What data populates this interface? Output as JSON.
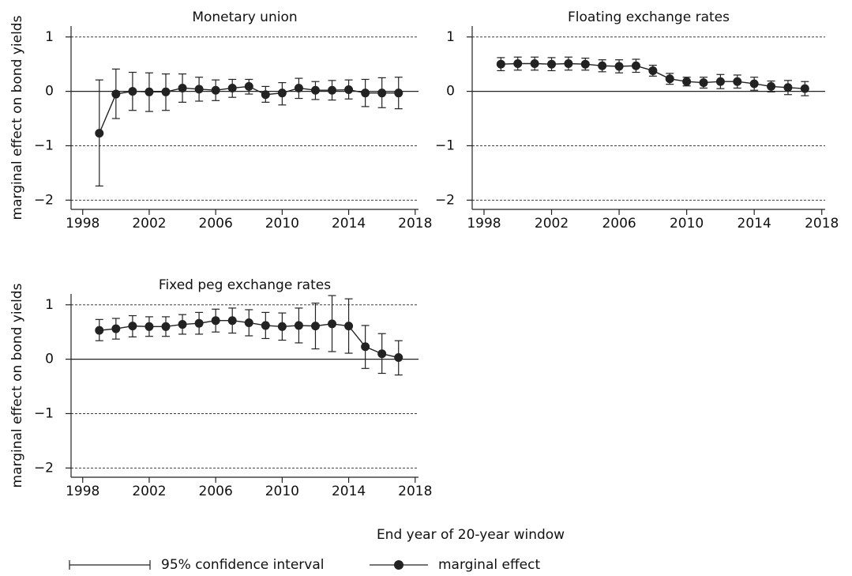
{
  "chart_data": [
    {
      "type": "line",
      "title": "Monetary union",
      "ylabel": "marginal effect on bond yields",
      "x": [
        1999,
        2000,
        2001,
        2002,
        2003,
        2004,
        2005,
        2006,
        2007,
        2008,
        2009,
        2010,
        2011,
        2012,
        2013,
        2014,
        2015,
        2016,
        2017
      ],
      "series": [
        {
          "name": "marginal effect",
          "color": "#222222",
          "values": [
            -0.77,
            -0.05,
            0.0,
            -0.01,
            -0.01,
            0.06,
            0.04,
            0.02,
            0.06,
            0.09,
            -0.06,
            -0.03,
            0.06,
            0.02,
            0.02,
            0.03,
            -0.03,
            -0.03,
            -0.03
          ]
        }
      ],
      "ci": {
        "name": "95% confidence interval",
        "low": [
          -1.74,
          -0.5,
          -0.35,
          -0.37,
          -0.35,
          -0.2,
          -0.18,
          -0.17,
          -0.11,
          -0.05,
          -0.2,
          -0.25,
          -0.13,
          -0.15,
          -0.16,
          -0.14,
          -0.28,
          -0.3,
          -0.32
        ],
        "high": [
          0.21,
          0.41,
          0.35,
          0.34,
          0.32,
          0.32,
          0.26,
          0.21,
          0.22,
          0.22,
          0.09,
          0.16,
          0.24,
          0.18,
          0.2,
          0.21,
          0.22,
          0.25,
          0.26
        ]
      },
      "xlim": [
        1997.3,
        2018.2
      ],
      "xticks": [
        1998,
        2002,
        2006,
        2010,
        2014,
        2018
      ],
      "ylim": [
        -2.17,
        1.2
      ],
      "yticks": [
        {
          "value": -2,
          "label": "−2"
        },
        {
          "value": -1,
          "label": "−1"
        },
        0,
        1
      ],
      "grid": true
    },
    {
      "type": "line",
      "title": "Floating exchange rates",
      "x": [
        1999,
        2000,
        2001,
        2002,
        2003,
        2004,
        2005,
        2006,
        2007,
        2008,
        2009,
        2010,
        2011,
        2012,
        2013,
        2014,
        2015,
        2016,
        2017
      ],
      "series": [
        {
          "name": "marginal effect",
          "color": "#222222",
          "values": [
            0.5,
            0.51,
            0.51,
            0.5,
            0.51,
            0.5,
            0.47,
            0.46,
            0.47,
            0.38,
            0.23,
            0.18,
            0.16,
            0.18,
            0.18,
            0.14,
            0.09,
            0.07,
            0.05
          ]
        }
      ],
      "ci": {
        "name": "95% confidence interval",
        "low": [
          0.38,
          0.39,
          0.39,
          0.38,
          0.39,
          0.39,
          0.36,
          0.34,
          0.35,
          0.28,
          0.13,
          0.1,
          0.06,
          0.05,
          0.06,
          0.02,
          -0.01,
          -0.06,
          -0.08
        ],
        "high": [
          0.62,
          0.63,
          0.63,
          0.62,
          0.63,
          0.61,
          0.58,
          0.58,
          0.59,
          0.48,
          0.33,
          0.26,
          0.26,
          0.31,
          0.3,
          0.26,
          0.19,
          0.2,
          0.18
        ]
      },
      "xlim": [
        1997.3,
        2018.2
      ],
      "xticks": [
        1998,
        2002,
        2006,
        2010,
        2014,
        2018
      ],
      "ylim": [
        -2.17,
        1.2
      ],
      "yticks": [
        {
          "value": -2,
          "label": "−2"
        },
        {
          "value": -1,
          "label": "−1"
        },
        0,
        1
      ],
      "grid": true
    },
    {
      "type": "line",
      "title": "Fixed peg exchange rates",
      "ylabel": "marginal effect on bond yields",
      "x": [
        1999,
        2000,
        2001,
        2002,
        2003,
        2004,
        2005,
        2006,
        2007,
        2008,
        2009,
        2010,
        2011,
        2012,
        2013,
        2014,
        2015,
        2016,
        2017
      ],
      "series": [
        {
          "name": "marginal effect",
          "color": "#222222",
          "values": [
            0.53,
            0.56,
            0.61,
            0.6,
            0.6,
            0.64,
            0.66,
            0.71,
            0.71,
            0.67,
            0.62,
            0.6,
            0.62,
            0.61,
            0.65,
            0.61,
            0.23,
            0.1,
            0.03
          ]
        }
      ],
      "ci": {
        "name": "95% confidence interval",
        "low": [
          0.34,
          0.37,
          0.41,
          0.42,
          0.42,
          0.46,
          0.46,
          0.5,
          0.48,
          0.43,
          0.38,
          0.35,
          0.3,
          0.19,
          0.14,
          0.11,
          -0.17,
          -0.26,
          -0.29
        ],
        "high": [
          0.73,
          0.75,
          0.8,
          0.78,
          0.78,
          0.82,
          0.86,
          0.92,
          0.94,
          0.91,
          0.86,
          0.85,
          0.94,
          1.03,
          1.17,
          1.11,
          0.62,
          0.47,
          0.34
        ]
      },
      "xlim": [
        1997.3,
        2018.2
      ],
      "xticks": [
        1998,
        2002,
        2006,
        2010,
        2014,
        2018
      ],
      "ylim": [
        -2.17,
        1.2
      ],
      "yticks": [
        {
          "value": -2,
          "label": "−2"
        },
        {
          "value": -1,
          "label": "−1"
        },
        0,
        1
      ],
      "grid": true
    }
  ],
  "xlabel": "End year of 20-year window"
}
